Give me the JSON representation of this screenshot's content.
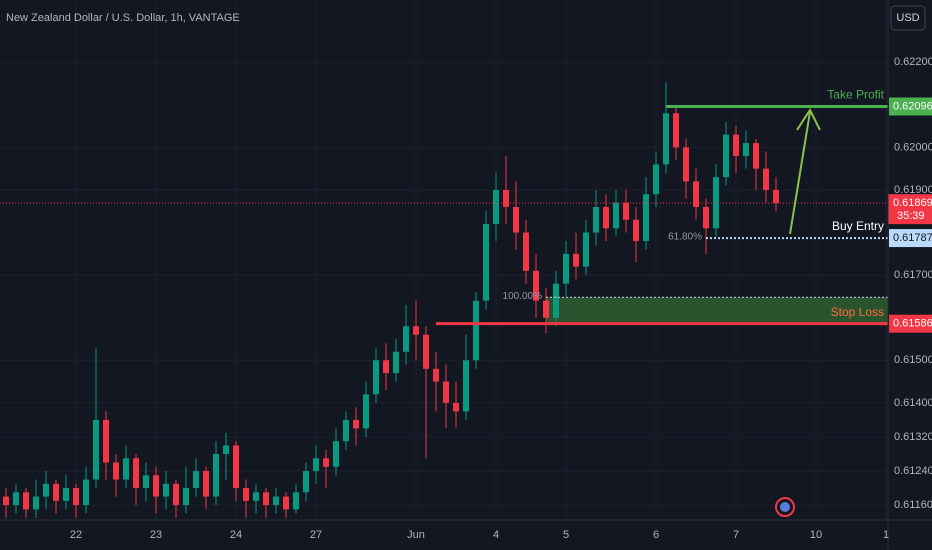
{
  "chart_data": {
    "type": "candlestick",
    "title": "New Zealand Dollar / U.S. Dollar, 1h, VANTAGE",
    "currency": "USD",
    "categories": [
      null,
      null,
      null,
      null,
      null,
      null,
      null,
      "22",
      null,
      null,
      null,
      null,
      null,
      null,
      null,
      "23",
      null,
      null,
      null,
      null,
      null,
      null,
      null,
      "24",
      null,
      null,
      null,
      null,
      null,
      null,
      null,
      "27",
      null,
      null,
      null,
      null,
      null,
      null,
      null,
      null,
      null,
      "Jun",
      null,
      null,
      null,
      null,
      null,
      null,
      null,
      "4",
      null,
      null,
      null,
      null,
      null,
      null,
      "5",
      null,
      null,
      null,
      null,
      null,
      null,
      null,
      null,
      "6",
      null,
      null,
      null,
      null,
      null,
      null,
      null,
      "7",
      null,
      null,
      null,
      null,
      null,
      null,
      null,
      "10",
      null,
      null,
      null,
      null,
      null,
      null,
      "1"
    ],
    "open": [
      0.6118,
      0.6116,
      0.6119,
      0.6115,
      0.6118,
      0.6121,
      0.6117,
      0.612,
      0.6116,
      0.6122,
      0.6136,
      0.6126,
      0.6122,
      0.6127,
      0.612,
      0.6123,
      0.6118,
      0.6121,
      0.6116,
      0.612,
      0.6124,
      0.6118,
      0.6128,
      0.613,
      0.612,
      0.6117,
      0.6119,
      0.6116,
      0.6118,
      0.6115,
      0.6119,
      0.6124,
      0.6127,
      0.6125,
      0.6131,
      0.6136,
      0.6134,
      0.6142,
      0.615,
      0.6147,
      0.6152,
      0.6158,
      0.6156,
      0.6148,
      0.6145,
      0.614,
      0.6138,
      0.615,
      0.6164,
      0.6182,
      0.619,
      0.6186,
      0.618,
      0.6171,
      0.6164,
      0.616,
      0.6168,
      0.6175,
      0.6172,
      0.618,
      0.6186,
      0.6181,
      0.6187,
      0.6183,
      0.6178,
      0.6189,
      0.6196,
      0.6208,
      0.62,
      0.6192,
      0.6186,
      0.6181,
      0.6193,
      0.6203,
      0.6198,
      0.6201,
      0.6195,
      0.619,
      null,
      null,
      null,
      null,
      null,
      null,
      null,
      null,
      null,
      null,
      null
    ],
    "high": [
      0.612,
      0.6121,
      0.612,
      0.6122,
      0.6124,
      0.6122,
      0.6123,
      0.6121,
      0.6125,
      0.61528,
      0.6138,
      0.6128,
      0.613,
      0.6128,
      0.6126,
      0.6125,
      0.6124,
      0.6122,
      0.6125,
      0.6127,
      0.6125,
      0.6131,
      0.6133,
      0.6131,
      0.6122,
      0.6121,
      0.612,
      0.612,
      0.6119,
      0.6121,
      0.6126,
      0.613,
      0.6129,
      0.6134,
      0.6138,
      0.6139,
      0.6145,
      0.6153,
      0.6154,
      0.6155,
      0.6163,
      0.61641,
      0.6158,
      0.6152,
      0.6149,
      0.6145,
      0.6156,
      0.6166,
      0.6185,
      0.6194,
      0.6198,
      0.6192,
      0.6183,
      0.6175,
      0.6167,
      0.6171,
      0.6178,
      0.618,
      0.6183,
      0.619,
      0.6189,
      0.619,
      0.619,
      0.6186,
      0.6193,
      0.6199,
      0.62153,
      0.621,
      0.6202,
      0.6195,
      0.6188,
      0.6196,
      0.6206,
      0.6205,
      0.6204,
      0.6202,
      0.6199,
      0.6193,
      null,
      null,
      null,
      null,
      null,
      null,
      null,
      null,
      null,
      null,
      null
    ],
    "low": [
      0.6113,
      0.6114,
      0.6113,
      0.6113,
      0.6115,
      0.6114,
      0.6115,
      0.6113,
      0.6114,
      0.612,
      0.6122,
      0.6118,
      0.612,
      0.6116,
      0.6117,
      0.6114,
      0.6115,
      0.6113,
      0.6114,
      0.6118,
      0.6115,
      0.6116,
      0.6122,
      0.6117,
      0.6113,
      0.6114,
      0.6113,
      0.6114,
      0.6113,
      0.6114,
      0.6117,
      0.6121,
      0.612,
      0.6123,
      0.6129,
      0.613,
      0.6132,
      0.614,
      0.6143,
      0.6145,
      0.6149,
      0.615,
      0.6127,
      0.6138,
      0.6134,
      0.6134,
      0.6136,
      0.6148,
      0.6162,
      0.6178,
      0.6182,
      0.6176,
      0.6168,
      0.616,
      0.61564,
      0.6158,
      0.6165,
      0.6169,
      0.617,
      0.6177,
      0.6178,
      0.6179,
      0.618,
      0.6173,
      0.6176,
      0.6186,
      0.6194,
      0.6197,
      0.6188,
      0.6183,
      0.6175,
      0.6179,
      0.6191,
      0.6194,
      0.6195,
      0.619,
      0.6187,
      0.6185,
      null,
      null,
      null,
      null,
      null,
      null,
      null,
      null,
      null,
      null,
      null
    ],
    "close": [
      0.6116,
      0.6119,
      0.6115,
      0.6118,
      0.6121,
      0.6117,
      0.612,
      0.6116,
      0.6122,
      0.6136,
      0.6126,
      0.6122,
      0.6127,
      0.612,
      0.6123,
      0.6118,
      0.6121,
      0.6116,
      0.612,
      0.6124,
      0.6118,
      0.6128,
      0.613,
      0.612,
      0.6117,
      0.6119,
      0.6116,
      0.6118,
      0.6115,
      0.6119,
      0.6124,
      0.6127,
      0.6125,
      0.6131,
      0.6136,
      0.6134,
      0.6142,
      0.615,
      0.6147,
      0.6152,
      0.6158,
      0.6156,
      0.6148,
      0.6145,
      0.614,
      0.6138,
      0.615,
      0.6164,
      0.6182,
      0.619,
      0.6186,
      0.618,
      0.6171,
      0.6164,
      0.616,
      0.6168,
      0.6175,
      0.6172,
      0.618,
      0.6186,
      0.6181,
      0.6187,
      0.6183,
      0.6178,
      0.6189,
      0.6196,
      0.6208,
      0.62,
      0.6192,
      0.6186,
      0.6181,
      0.6193,
      0.6203,
      0.6198,
      0.6201,
      0.6195,
      0.619,
      0.61869,
      null,
      null,
      null,
      null,
      null,
      null,
      null,
      null,
      null,
      null,
      null
    ],
    "up_color": "#089981",
    "down_color": "#f23645",
    "ylim": [
      0.61125,
      0.62346
    ],
    "yticks": [
      {
        "value": 0.622,
        "label": "0.62200"
      },
      {
        "value": 0.62,
        "label": "0.62000"
      },
      {
        "value": 0.619,
        "label": "0.61900"
      },
      {
        "value": 0.617,
        "label": "0.61700"
      },
      {
        "value": 0.615,
        "label": "0.61500"
      },
      {
        "value": 0.614,
        "label": "0.61400"
      },
      {
        "value": 0.6132,
        "label": "0.61320"
      },
      {
        "value": 0.6124,
        "label": "0.61240"
      },
      {
        "value": 0.6116,
        "label": "0.61160"
      }
    ],
    "grid": true,
    "last_price": 0.61869,
    "countdown": "35:39",
    "levels": [
      {
        "name": "Take Profit",
        "value": 0.62096,
        "color": "#4caf50"
      },
      {
        "name": "Buy Entry",
        "value": 0.61787,
        "color": "#bbd9fb"
      },
      {
        "name": "Stop Loss",
        "value": 0.61586,
        "color": "#f23645"
      }
    ],
    "fib": [
      {
        "label": "61.80%",
        "value": 0.61787
      },
      {
        "label": "100.00%",
        "value": 0.61648
      }
    ]
  }
}
